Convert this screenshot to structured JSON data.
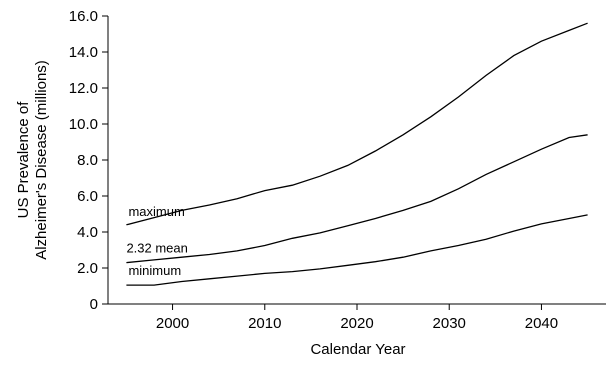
{
  "chart_data": {
    "type": "line",
    "xlabel": "Calendar Year",
    "ylabel_lines": [
      "US Prevalence of",
      "Alzheimer's Disease (millions)"
    ],
    "xlim": [
      1993,
      2047
    ],
    "ylim": [
      0,
      16
    ],
    "x_ticks": [
      2000,
      2010,
      2020,
      2030,
      2040
    ],
    "y_ticks": [
      0,
      2.0,
      4.0,
      6.0,
      8.0,
      10.0,
      12.0,
      14.0,
      16.0
    ],
    "y_tick_labels": [
      "0",
      "2.0",
      "4.0",
      "6.0",
      "8.0",
      "10.0",
      "12.0",
      "14.0",
      "16.0"
    ],
    "grid": false,
    "series": [
      {
        "name": "maximum",
        "x": [
          1995,
          1998,
          2001,
          2004,
          2007,
          2010,
          2013,
          2016,
          2019,
          2022,
          2025,
          2028,
          2031,
          2034,
          2037,
          2040,
          2043,
          2045
        ],
        "y": [
          4.4,
          4.8,
          5.2,
          5.5,
          5.85,
          6.3,
          6.6,
          7.1,
          7.7,
          8.5,
          9.4,
          10.4,
          11.5,
          12.7,
          13.8,
          14.6,
          15.2,
          15.6
        ]
      },
      {
        "name": "2.32 mean",
        "x": [
          1995,
          1998,
          2001,
          2004,
          2007,
          2010,
          2013,
          2016,
          2019,
          2022,
          2025,
          2028,
          2031,
          2034,
          2037,
          2040,
          2043,
          2045
        ],
        "y": [
          2.3,
          2.45,
          2.6,
          2.75,
          2.95,
          3.25,
          3.65,
          3.95,
          4.35,
          4.75,
          5.2,
          5.7,
          6.4,
          7.2,
          7.9,
          8.6,
          9.25,
          9.4
        ]
      },
      {
        "name": "minimum",
        "x": [
          1995,
          1998,
          2001,
          2004,
          2007,
          2010,
          2013,
          2016,
          2019,
          2022,
          2025,
          2028,
          2031,
          2034,
          2037,
          2040,
          2043,
          2045
        ],
        "y": [
          1.05,
          1.05,
          1.25,
          1.4,
          1.55,
          1.7,
          1.8,
          1.95,
          2.15,
          2.35,
          2.6,
          2.95,
          3.25,
          3.6,
          4.05,
          4.45,
          4.75,
          4.95
        ]
      }
    ]
  }
}
